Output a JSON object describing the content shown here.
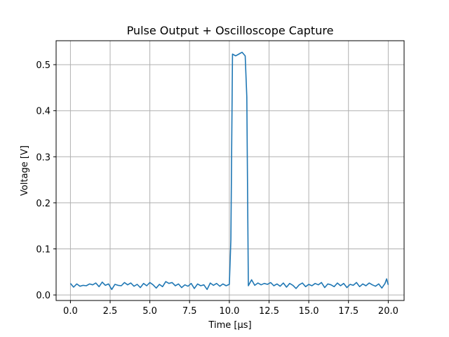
{
  "chart_data": {
    "type": "line",
    "title": "Pulse Output + Oscilloscope Capture",
    "xlabel": "Time [µs]",
    "ylabel": "Voltage [V]",
    "xlim": [
      -0.9,
      21.0
    ],
    "ylim": [
      -0.012,
      0.552
    ],
    "grid": true,
    "x_ticks": [
      0,
      2.5,
      5.0,
      7.5,
      10.0,
      12.5,
      15.0,
      17.5,
      20.0
    ],
    "x_tick_labels": [
      "0.0",
      "2.5",
      "5.0",
      "7.5",
      "10.0",
      "12.5",
      "15.0",
      "17.5",
      "20.0"
    ],
    "y_ticks": [
      0.0,
      0.1,
      0.2,
      0.3,
      0.4,
      0.5
    ],
    "y_tick_labels": [
      "0.0",
      "0.1",
      "0.2",
      "0.3",
      "0.4",
      "0.5"
    ],
    "series": [
      {
        "color": "#1f77b4",
        "x": [
          0.0,
          0.2,
          0.4,
          0.6,
          0.8,
          1.0,
          1.2,
          1.4,
          1.6,
          1.8,
          2.0,
          2.2,
          2.4,
          2.6,
          2.8,
          3.0,
          3.2,
          3.4,
          3.6,
          3.8,
          4.0,
          4.2,
          4.4,
          4.6,
          4.8,
          5.0,
          5.2,
          5.4,
          5.6,
          5.8,
          6.0,
          6.2,
          6.4,
          6.6,
          6.8,
          7.0,
          7.2,
          7.4,
          7.6,
          7.8,
          8.0,
          8.2,
          8.4,
          8.6,
          8.8,
          9.0,
          9.2,
          9.4,
          9.6,
          9.8,
          10.0,
          10.1,
          10.2,
          10.4,
          10.6,
          10.8,
          11.0,
          11.1,
          11.2,
          11.4,
          11.6,
          11.8,
          12.0,
          12.2,
          12.4,
          12.6,
          12.8,
          13.0,
          13.2,
          13.4,
          13.6,
          13.8,
          14.0,
          14.2,
          14.4,
          14.6,
          14.8,
          15.0,
          15.2,
          15.4,
          15.6,
          15.8,
          16.0,
          16.2,
          16.4,
          16.6,
          16.8,
          17.0,
          17.2,
          17.4,
          17.6,
          17.8,
          18.0,
          18.2,
          18.4,
          18.6,
          18.8,
          19.0,
          19.2,
          19.4,
          19.6,
          19.8,
          19.9,
          20.0
        ],
        "y": [
          0.025,
          0.017,
          0.024,
          0.019,
          0.021,
          0.02,
          0.024,
          0.022,
          0.026,
          0.018,
          0.028,
          0.021,
          0.024,
          0.012,
          0.023,
          0.021,
          0.02,
          0.027,
          0.022,
          0.026,
          0.019,
          0.023,
          0.016,
          0.025,
          0.02,
          0.027,
          0.022,
          0.015,
          0.023,
          0.018,
          0.029,
          0.025,
          0.027,
          0.02,
          0.024,
          0.016,
          0.022,
          0.019,
          0.025,
          0.014,
          0.024,
          0.02,
          0.022,
          0.012,
          0.026,
          0.021,
          0.025,
          0.019,
          0.024,
          0.02,
          0.023,
          0.12,
          0.523,
          0.519,
          0.523,
          0.527,
          0.519,
          0.43,
          0.02,
          0.033,
          0.021,
          0.026,
          0.022,
          0.025,
          0.023,
          0.027,
          0.02,
          0.024,
          0.019,
          0.026,
          0.017,
          0.025,
          0.021,
          0.014,
          0.022,
          0.026,
          0.018,
          0.023,
          0.02,
          0.025,
          0.022,
          0.027,
          0.016,
          0.024,
          0.022,
          0.018,
          0.026,
          0.02,
          0.025,
          0.016,
          0.023,
          0.021,
          0.027,
          0.018,
          0.024,
          0.02,
          0.026,
          0.022,
          0.019,
          0.024,
          0.015,
          0.025,
          0.035,
          0.022
        ]
      }
    ]
  }
}
